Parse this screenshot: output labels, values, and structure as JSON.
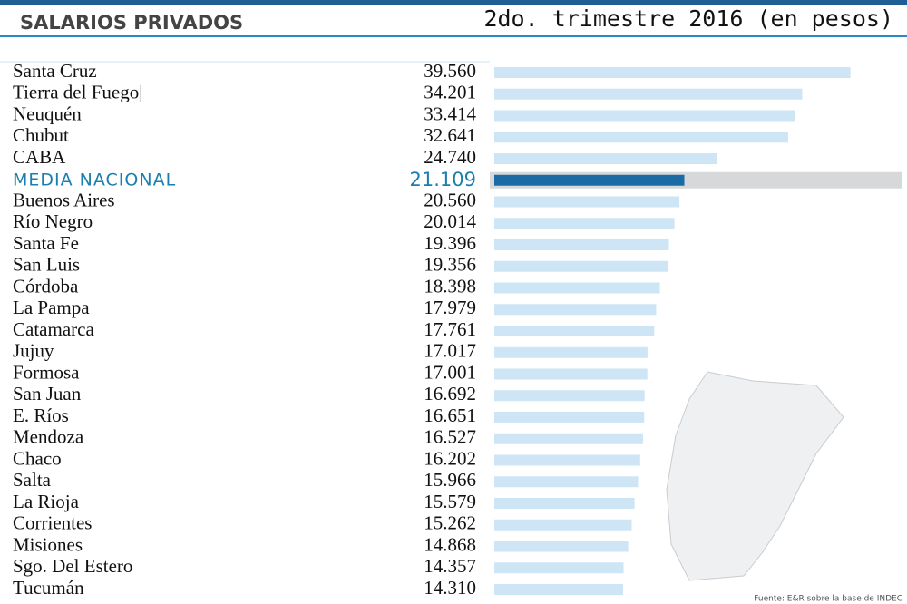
{
  "chart_data": {
    "type": "bar",
    "orientation": "horizontal",
    "title": "SALARIOS PRIVADOS",
    "subtitle": "2do. trimestre 2016 (en pesos)",
    "source": "Fuente: E&R sobre la base de INDEC",
    "categories": [
      "Santa Cruz",
      "Tierra del Fuego|",
      "Neuquén",
      "Chubut",
      "CABA",
      "MEDIA NACIONAL",
      "Buenos Aires",
      "Río Negro",
      "Santa Fe",
      "San Luis",
      "Córdoba",
      "La Pampa",
      "Catamarca",
      "Jujuy",
      "Formosa",
      "San Juan",
      "E. Ríos",
      "Mendoza",
      "Chaco",
      "Salta",
      "La Rioja",
      "Corrientes",
      "Misiones",
      "Sgo. Del Estero",
      "Tucumán"
    ],
    "values": [
      39560,
      34201,
      33414,
      32641,
      24740,
      21109,
      20560,
      20014,
      19396,
      19356,
      18398,
      17979,
      17761,
      17017,
      17001,
      16692,
      16651,
      16527,
      16202,
      15966,
      15579,
      15262,
      14868,
      14357,
      14310
    ],
    "value_labels": [
      "39.560",
      "34.201",
      "33.414",
      "32.641",
      "24.740",
      "21.109",
      "20.560",
      "20.014",
      "19.396",
      "19.356",
      "18.398",
      "17.979",
      "17.761",
      "17.017",
      "17.001",
      "16.692",
      "16.651",
      "16.527",
      "16.202",
      "15.966",
      "15.579",
      "15.262",
      "14.868",
      "14.357",
      "14.310"
    ],
    "colors": [
      "#cde5f5",
      "#cde5f5",
      "#cde5f5",
      "#cde5f5",
      "#cde5f5",
      "#1a6aa6",
      "#cde5f5",
      "#cde5f5",
      "#cde5f5",
      "#cde5f5",
      "#cde5f5",
      "#cde5f5",
      "#cde5f5",
      "#cde5f5",
      "#cde5f5",
      "#cde5f5",
      "#cde5f5",
      "#cde5f5",
      "#cde5f5",
      "#cde5f5",
      "#cde5f5",
      "#cde5f5",
      "#cde5f5",
      "#cde5f5",
      "#cde5f5"
    ],
    "text_colors": [
      "#111111",
      "#111111",
      "#111111",
      "#111111",
      "#111111",
      "#1a7fb0",
      "#111111",
      "#111111",
      "#111111",
      "#111111",
      "#111111",
      "#111111",
      "#111111",
      "#111111",
      "#111111",
      "#111111",
      "#111111",
      "#111111",
      "#111111",
      "#111111",
      "#111111",
      "#111111",
      "#111111",
      "#111111",
      "#111111"
    ],
    "xlim": [
      0,
      40000
    ]
  }
}
